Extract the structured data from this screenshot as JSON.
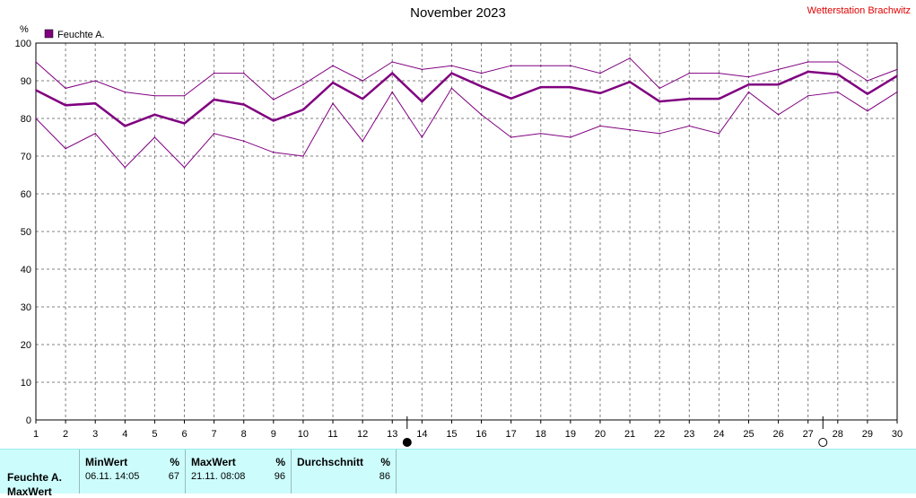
{
  "header": {
    "title": "November 2023",
    "station": "Wetterstation Brachwitz"
  },
  "chart_data": {
    "type": "line",
    "title": "November 2023",
    "ylabel": "%",
    "ylim": [
      0,
      100
    ],
    "yticks": [
      0,
      10,
      20,
      30,
      40,
      50,
      60,
      70,
      80,
      90,
      100
    ],
    "x": [
      1,
      2,
      3,
      4,
      5,
      6,
      7,
      8,
      9,
      10,
      11,
      12,
      13,
      14,
      15,
      16,
      17,
      18,
      19,
      20,
      21,
      22,
      23,
      24,
      25,
      26,
      27,
      28,
      29,
      30
    ],
    "legend": "Feuchte A.",
    "series": [
      {
        "name": "Feuchte A.",
        "role": "max",
        "color": "#800080",
        "values": [
          95,
          88,
          90,
          87,
          86,
          86,
          92,
          92,
          85,
          89,
          94,
          90,
          95,
          93,
          94,
          92,
          94,
          94,
          94,
          92,
          96,
          88,
          92,
          92,
          91,
          93,
          95,
          95,
          90,
          93
        ]
      },
      {
        "name": "Feuchte A.",
        "role": "avg",
        "color": "#800080",
        "values": [
          87.5,
          83.5,
          84,
          78,
          81,
          78.7,
          85,
          83.7,
          79.4,
          82.3,
          89.5,
          85.2,
          92,
          84.5,
          92,
          88.5,
          85.3,
          88.3,
          88.3,
          86.7,
          89.7,
          84.5,
          85.2,
          85.2,
          89,
          89,
          92.4,
          91.7,
          86.5,
          91.3
        ]
      },
      {
        "name": "Feuchte A.",
        "role": "min",
        "color": "#800080",
        "values": [
          80,
          72,
          76,
          67,
          75,
          67,
          76,
          74,
          71,
          70,
          84,
          74,
          87,
          75,
          88,
          81,
          75,
          76,
          75,
          78,
          77,
          76,
          78,
          76,
          87,
          81,
          86,
          87,
          82,
          87
        ]
      }
    ],
    "moon_markers": [
      {
        "day": 13.5,
        "phase": "new"
      },
      {
        "day": 27.5,
        "phase": "full"
      }
    ],
    "grid": true
  },
  "stats_panel": {
    "row_label": "Feuchte A.",
    "row_label2": "MaxWert",
    "min": {
      "header": "MinWert",
      "unit": "%",
      "date": "06.11.",
      "time": "14:05",
      "value": "67"
    },
    "max": {
      "header": "MaxWert",
      "unit": "%",
      "date": "21.11.",
      "time": "08:08",
      "value": "96"
    },
    "avg": {
      "header": "Durchschnitt",
      "unit": "%",
      "value": "86"
    }
  }
}
